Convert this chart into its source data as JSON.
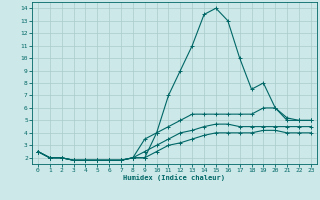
{
  "xlabel": "Humidex (Indice chaleur)",
  "ylabel": "",
  "bg_color": "#cce8e8",
  "grid_color": "#aacccc",
  "line_color": "#006666",
  "axis_color": "#006666",
  "xlim": [
    -0.5,
    23.5
  ],
  "ylim": [
    1.5,
    14.5
  ],
  "xticks": [
    0,
    1,
    2,
    3,
    4,
    5,
    6,
    7,
    8,
    9,
    10,
    11,
    12,
    13,
    14,
    15,
    16,
    17,
    18,
    19,
    20,
    21,
    22,
    23
  ],
  "yticks": [
    2,
    3,
    4,
    5,
    6,
    7,
    8,
    9,
    10,
    11,
    12,
    13,
    14
  ],
  "series": [
    {
      "x": [
        0,
        1,
        2,
        3,
        4,
        5,
        6,
        7,
        8,
        9,
        10,
        11,
        12,
        13,
        14,
        15,
        16,
        17,
        18,
        19,
        20,
        21,
        22,
        23
      ],
      "y": [
        2.5,
        2.0,
        2.0,
        1.8,
        1.8,
        1.8,
        1.8,
        1.8,
        2.0,
        2.0,
        4.0,
        7.0,
        9.0,
        11.0,
        13.5,
        14.0,
        13.0,
        10.0,
        7.5,
        8.0,
        6.0,
        5.0,
        5.0,
        5.0
      ]
    },
    {
      "x": [
        0,
        1,
        2,
        3,
        4,
        5,
        6,
        7,
        8,
        9,
        10,
        11,
        12,
        13,
        14,
        15,
        16,
        17,
        18,
        19,
        20,
        21,
        22,
        23
      ],
      "y": [
        2.5,
        2.0,
        2.0,
        1.8,
        1.8,
        1.8,
        1.8,
        1.8,
        2.0,
        3.5,
        4.0,
        4.5,
        5.0,
        5.5,
        5.5,
        5.5,
        5.5,
        5.5,
        5.5,
        6.0,
        6.0,
        5.2,
        5.0,
        5.0
      ]
    },
    {
      "x": [
        0,
        1,
        2,
        3,
        4,
        5,
        6,
        7,
        8,
        9,
        10,
        11,
        12,
        13,
        14,
        15,
        16,
        17,
        18,
        19,
        20,
        21,
        22,
        23
      ],
      "y": [
        2.5,
        2.0,
        2.0,
        1.8,
        1.8,
        1.8,
        1.8,
        1.8,
        2.0,
        2.5,
        3.0,
        3.5,
        4.0,
        4.2,
        4.5,
        4.7,
        4.7,
        4.5,
        4.5,
        4.5,
        4.5,
        4.5,
        4.5,
        4.5
      ]
    },
    {
      "x": [
        0,
        1,
        2,
        3,
        4,
        5,
        6,
        7,
        8,
        9,
        10,
        11,
        12,
        13,
        14,
        15,
        16,
        17,
        18,
        19,
        20,
        21,
        22,
        23
      ],
      "y": [
        2.5,
        2.0,
        2.0,
        1.8,
        1.8,
        1.8,
        1.8,
        1.8,
        2.0,
        2.0,
        2.5,
        3.0,
        3.2,
        3.5,
        3.8,
        4.0,
        4.0,
        4.0,
        4.0,
        4.2,
        4.2,
        4.0,
        4.0,
        4.0
      ]
    }
  ]
}
